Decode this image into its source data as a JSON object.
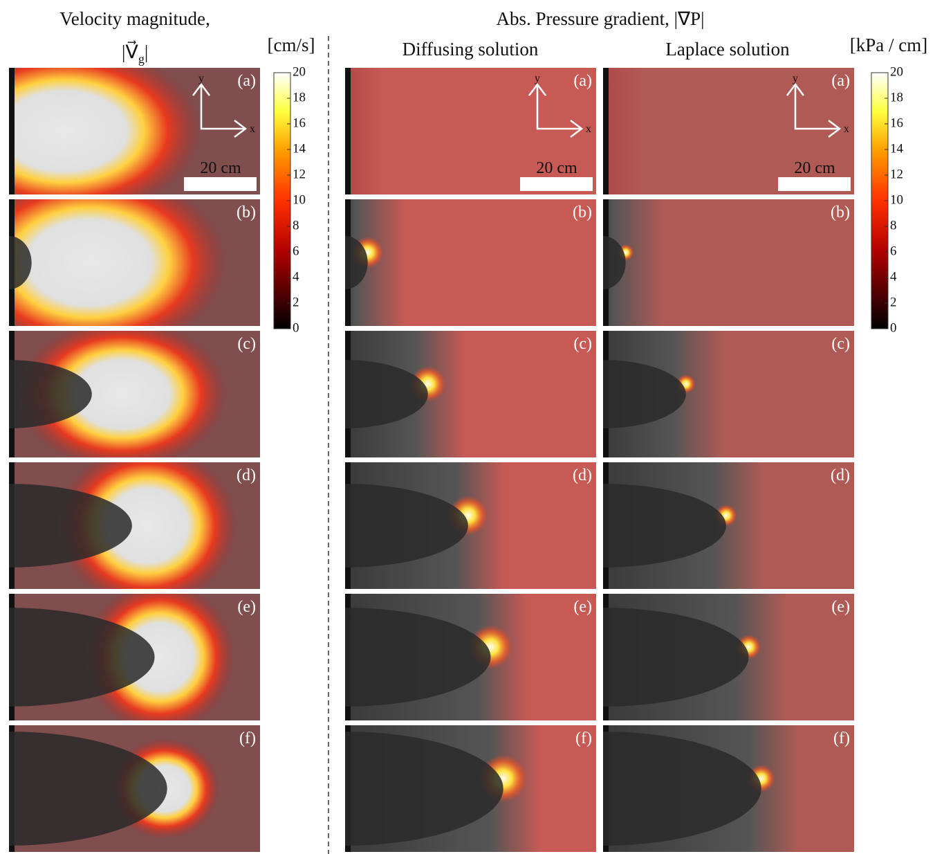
{
  "figure": {
    "left_title": "Velocity magnitude,",
    "left_symbol": "|V⃗",
    "left_symbol_sub": "g",
    "left_symbol_close": "|",
    "left_unit": "[cm/s]",
    "right_title": "Abs. Pressure gradient,  |∇P|",
    "right_unit": "[kPa / cm]",
    "column_titles": [
      "Diffusing solution",
      "Laplace solution"
    ],
    "panel_labels": [
      "(a)",
      "(b)",
      "(c)",
      "(d)",
      "(e)",
      "(f)"
    ],
    "scale_bar": "20 cm",
    "axis_x": "x",
    "axis_y": "y",
    "colorbars": [
      {
        "lim": [
          0,
          20
        ],
        "ticks": [
          0,
          2,
          4,
          6,
          8,
          10,
          12,
          14,
          16,
          18,
          20
        ]
      },
      {
        "lim": [
          0,
          20
        ],
        "ticks": [
          0,
          2,
          4,
          6,
          8,
          10,
          12,
          14,
          16,
          18,
          20
        ]
      }
    ]
  }
}
